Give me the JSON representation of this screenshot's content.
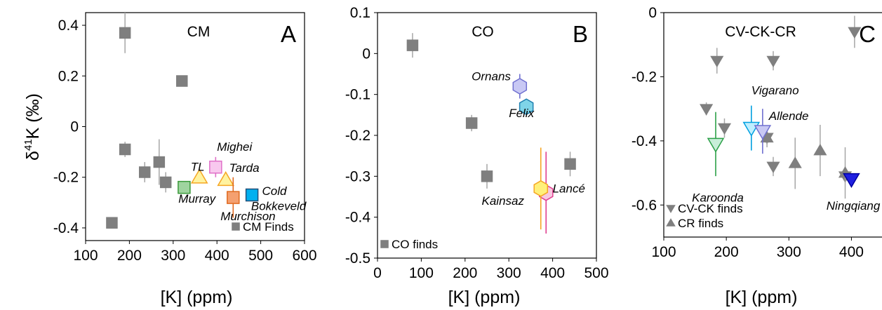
{
  "colors": {
    "finds_gray": "#7f7f7f",
    "Murray": "#9fd49f",
    "Murray_edge": "#3a9a3a",
    "TL": "#fff3a0",
    "TL_edge": "#f5a623",
    "Tarda": "#fff3a0",
    "Tarda_edge": "#f5a623",
    "Mighei": "#f8c8ee",
    "Mighei_edge": "#e070c8",
    "Murchison": "#f4a070",
    "Murchison_edge": "#e06a20",
    "Cold Bokkeveld": "#00b0f0",
    "Cold Bokkeveld_edge": "#1f4e79",
    "Ornans": "#c8c8f4",
    "Ornans_edge": "#7070d0",
    "Felix": "#7fd4e8",
    "Felix_edge": "#2080b0",
    "Kainsaz": "#fff07a",
    "Kainsaz_edge": "#f5a623",
    "Lancé": "#f8c8e0",
    "Lancé_edge": "#e04090",
    "Karoonda": "#c8eed8",
    "Karoonda_edge": "#2ca048",
    "Vigarano": "#bfefff",
    "Vigarano_edge": "#00a0e0",
    "Allende": "#c8c8f4",
    "Allende_edge": "#7070d0",
    "Ningqiang": "#1f1fe0",
    "Ningqiang_edge": "#0000a0"
  },
  "chart_data": [
    {
      "type": "scatter",
      "panel": "A",
      "title": "CM",
      "xlabel": "[K] (ppm)",
      "ylabel": "δ41K (‰)",
      "ylabel_base": "δ",
      "ylabel_sup": "41",
      "ylabel_rest": "K (‰)",
      "xlim": [
        100,
        600
      ],
      "ylim": [
        -0.45,
        0.45
      ],
      "xticks": [
        100,
        200,
        300,
        400,
        500,
        600
      ],
      "yticks": [
        0.4,
        0.2,
        0,
        -0.2,
        -0.4
      ],
      "ytick_labels": [
        "0.4",
        "0.2",
        "0",
        "-0.2",
        "-0.4"
      ],
      "legend": [
        {
          "label": "CM Finds",
          "marker": "square",
          "color": "#7f7f7f"
        }
      ],
      "legend_position": "bottom-right",
      "finds": {
        "marker": "square",
        "points": [
          {
            "x": 190,
            "y": 0.37,
            "err": 0.08
          },
          {
            "x": 320,
            "y": 0.18,
            "err": 0
          },
          {
            "x": 190,
            "y": -0.09,
            "err": 0.03
          },
          {
            "x": 235,
            "y": -0.18,
            "err": 0.04
          },
          {
            "x": 268,
            "y": -0.14,
            "err": 0.09
          },
          {
            "x": 283,
            "y": -0.22,
            "err": 0.04
          },
          {
            "x": 160,
            "y": -0.38,
            "err": 0.02
          }
        ]
      },
      "samples": [
        {
          "name": "Murray",
          "marker": "square",
          "x": 325,
          "y": -0.24,
          "err": 0.02
        },
        {
          "name": "TL",
          "marker": "triangle-up",
          "x": 360,
          "y": -0.2,
          "err": 0.02
        },
        {
          "name": "Mighei",
          "marker": "square",
          "x": 397,
          "y": -0.16,
          "err": 0.04
        },
        {
          "name": "Tarda",
          "marker": "triangle-up",
          "x": 420,
          "y": -0.21,
          "err": 0.02
        },
        {
          "name": "Murchison",
          "marker": "square",
          "x": 437,
          "y": -0.28,
          "err": 0.08
        },
        {
          "name": "Cold Bokkeveld",
          "marker": "square",
          "x": 480,
          "y": -0.27,
          "err": 0.02
        }
      ],
      "labels": [
        {
          "text": "Murray",
          "x": 312,
          "y": -0.3
        },
        {
          "text": "TL",
          "x": 340,
          "y": -0.175
        },
        {
          "text": "Mighei",
          "x": 400,
          "y": -0.095
        },
        {
          "text": "Tarda",
          "x": 428,
          "y": -0.178
        },
        {
          "text": "Murchison",
          "x": 408,
          "y": -0.37
        },
        {
          "text": "Bokkeveld",
          "x": 478,
          "y": -0.33
        },
        {
          "text": "Cold",
          "x": 503,
          "y": -0.27
        }
      ]
    },
    {
      "type": "scatter",
      "panel": "B",
      "title": "CO",
      "xlabel": "[K] (ppm)",
      "xlim": [
        0,
        500
      ],
      "ylim": [
        -0.5,
        0.1
      ],
      "xticks": [
        0,
        100,
        200,
        300,
        400,
        500
      ],
      "yticks": [
        0.1,
        0,
        -0.1,
        -0.2,
        -0.3,
        -0.4,
        -0.5
      ],
      "ytick_labels": [
        "0.1",
        "0",
        "-0.1",
        "-0.2",
        "-0.3",
        "-0.4",
        "-0.5"
      ],
      "legend": [
        {
          "label": "CO finds",
          "marker": "square",
          "color": "#7f7f7f"
        }
      ],
      "legend_position": "bottom-left",
      "finds": {
        "marker": "square",
        "points": [
          {
            "x": 80,
            "y": 0.02,
            "err": 0.03
          },
          {
            "x": 215,
            "y": -0.17,
            "err": 0.02
          },
          {
            "x": 250,
            "y": -0.3,
            "err": 0.03
          },
          {
            "x": 440,
            "y": -0.27,
            "err": 0.03
          }
        ]
      },
      "samples": [
        {
          "name": "Ornans",
          "marker": "hexagon",
          "x": 325,
          "y": -0.08,
          "err": 0.03
        },
        {
          "name": "Felix",
          "marker": "hexagon",
          "x": 340,
          "y": -0.13,
          "err": 0.01
        },
        {
          "name": "Lancé",
          "marker": "hexagon",
          "x": 385,
          "y": -0.34,
          "err": 0.1
        },
        {
          "name": "Kainsaz",
          "marker": "hexagon",
          "x": 373,
          "y": -0.33,
          "err": 0.1
        }
      ],
      "labels": [
        {
          "text": "Ornans",
          "x": 215,
          "y": -0.065
        },
        {
          "text": "Felix",
          "x": 300,
          "y": -0.155
        },
        {
          "text": "Lancé",
          "x": 400,
          "y": -0.34
        },
        {
          "text": "Kainsaz",
          "x": 238,
          "y": -0.37
        }
      ]
    },
    {
      "type": "scatter",
      "panel": "C",
      "title": "CV-CK-CR",
      "xlabel": "[K] (ppm)",
      "xlim": [
        100,
        450
      ],
      "ylim": [
        -0.7,
        0
      ],
      "xticks": [
        100,
        200,
        300,
        400
      ],
      "yticks": [
        0,
        -0.2,
        -0.4,
        -0.6
      ],
      "ytick_labels": [
        "0",
        "-0.2",
        "-0.4",
        "-0.6"
      ],
      "legend": [
        {
          "label": "CV-CK finds",
          "marker": "triangle-down",
          "color": "#7f7f7f"
        },
        {
          "label": "CR finds",
          "marker": "triangle-up",
          "color": "#7f7f7f"
        }
      ],
      "legend_position": "bottom-left",
      "finds": {
        "marker": "triangle-down",
        "points": [
          {
            "x": 405,
            "y": -0.06,
            "err": 0.05
          },
          {
            "x": 185,
            "y": -0.15,
            "err": 0.04
          },
          {
            "x": 275,
            "y": -0.15,
            "err": 0.03
          },
          {
            "x": 168,
            "y": -0.3,
            "err": 0.02
          },
          {
            "x": 197,
            "y": -0.36,
            "err": 0.03
          },
          {
            "x": 265,
            "y": -0.39,
            "err": 0.03
          },
          {
            "x": 275,
            "y": -0.48,
            "err": 0.03
          },
          {
            "x": 390,
            "y": -0.51,
            "err": 0.02
          }
        ]
      },
      "finds2": {
        "marker": "triangle-up",
        "points": [
          {
            "x": 265,
            "y": -0.39,
            "err": 0.02
          },
          {
            "x": 310,
            "y": -0.47,
            "err": 0.08
          },
          {
            "x": 350,
            "y": -0.43,
            "err": 0.08
          },
          {
            "x": 390,
            "y": -0.5,
            "err": 0.08
          }
        ]
      },
      "samples": [
        {
          "name": "Karoonda",
          "marker": "triangle-down",
          "x": 183,
          "y": -0.41,
          "err": 0.1
        },
        {
          "name": "Vigarano",
          "marker": "triangle-down",
          "x": 240,
          "y": -0.36,
          "err": 0.07
        },
        {
          "name": "Allende",
          "marker": "triangle-down",
          "x": 258,
          "y": -0.37,
          "err": 0.07
        },
        {
          "name": "Ningqiang",
          "marker": "triangle-down",
          "x": 400,
          "y": -0.52,
          "err": 0.01
        }
      ],
      "labels": [
        {
          "text": "Vigarano",
          "x": 240,
          "y": -0.255
        },
        {
          "text": "Allende",
          "x": 268,
          "y": -0.335
        },
        {
          "text": "Karoonda",
          "x": 145,
          "y": -0.59
        },
        {
          "text": "Ningqiang",
          "x": 360,
          "y": -0.615
        }
      ]
    }
  ]
}
